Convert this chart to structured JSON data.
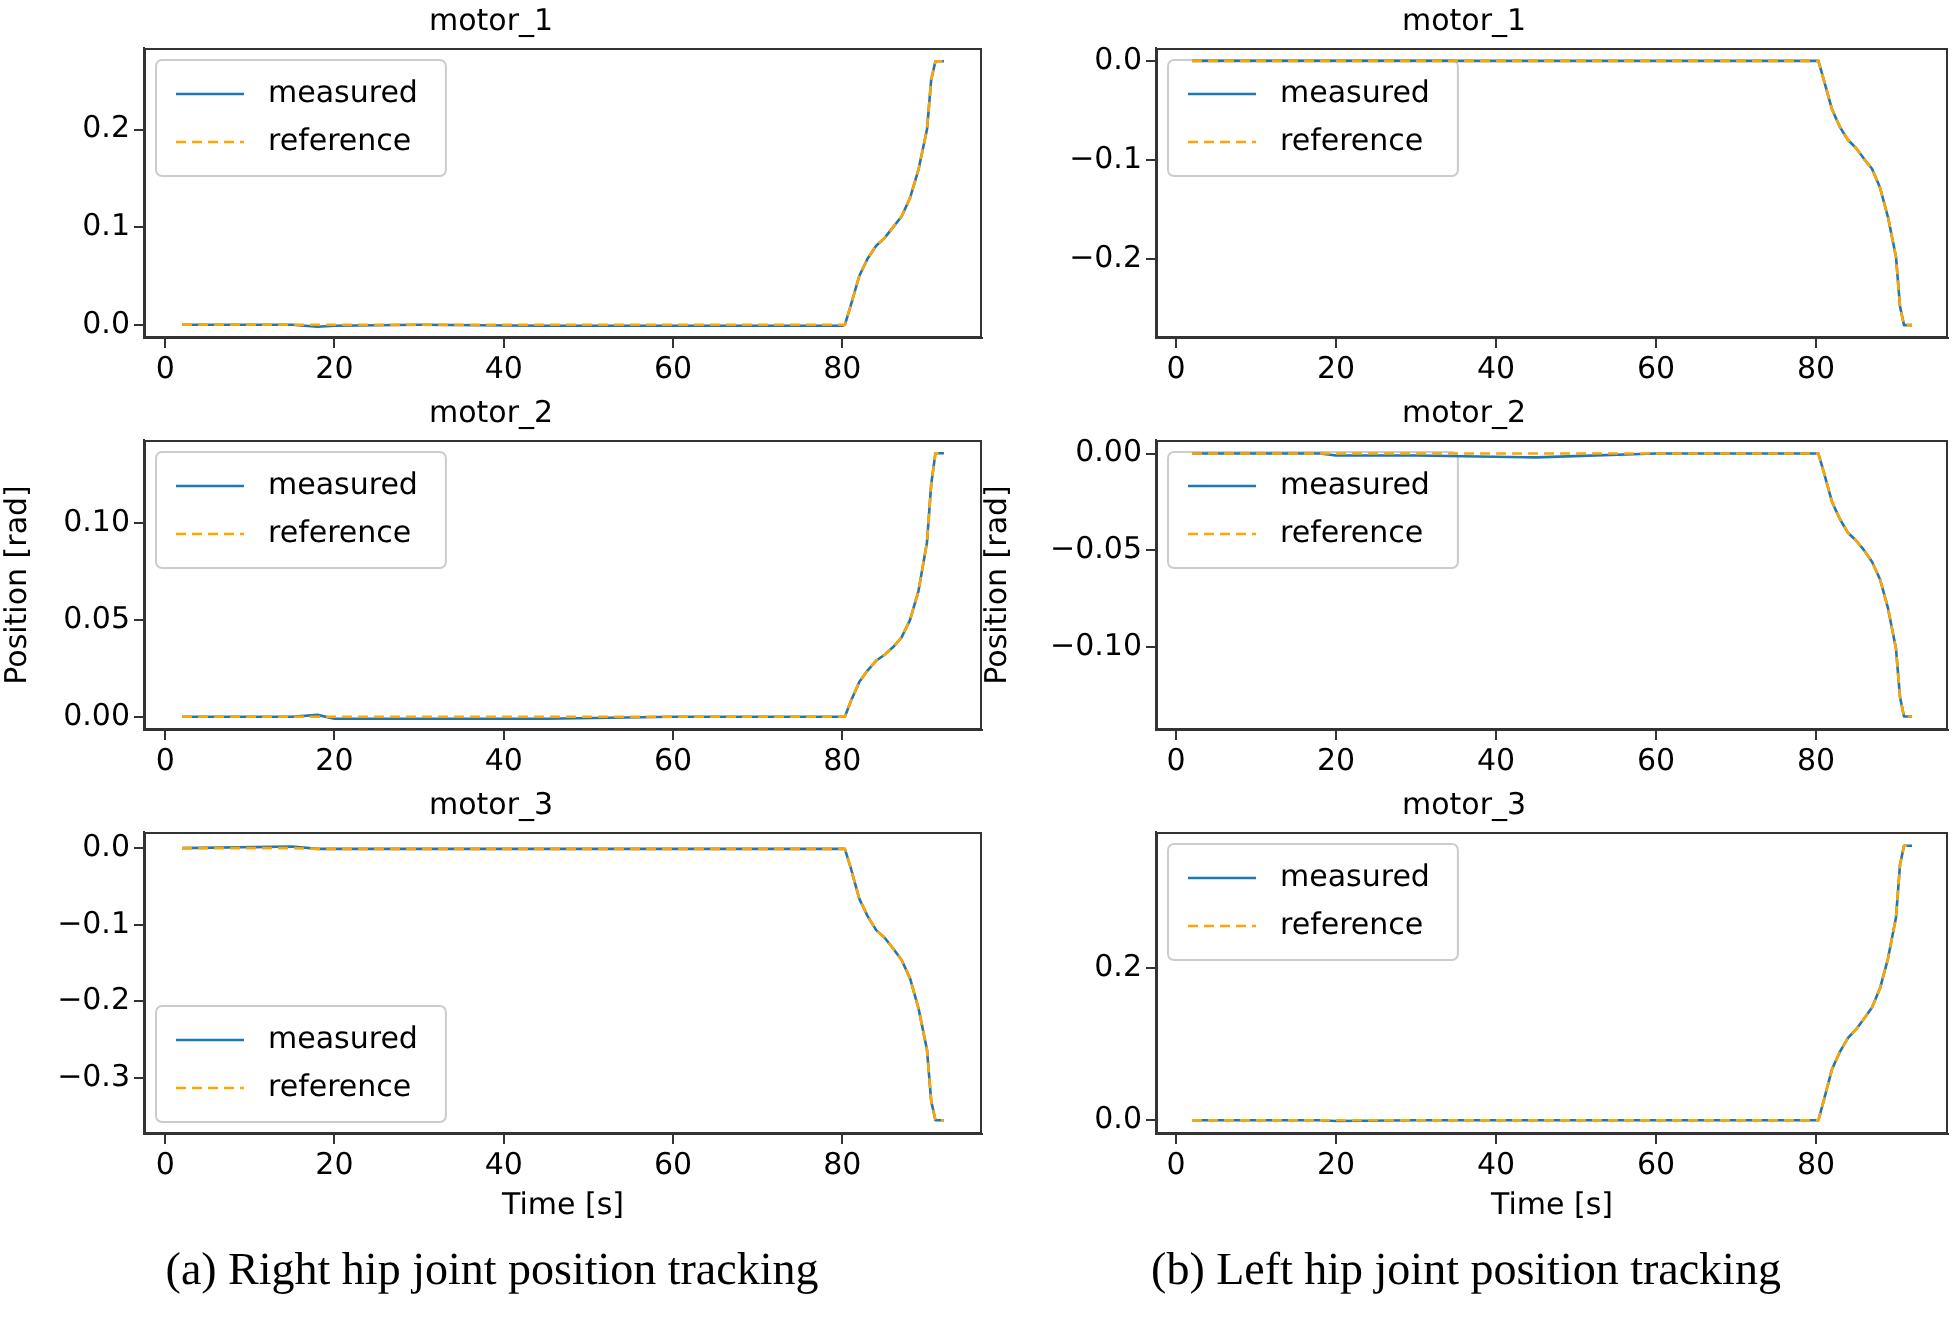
{
  "chart_data": [
    {
      "type": "line",
      "title": "motor_1",
      "x": [
        2,
        15,
        18,
        20,
        30,
        45,
        60,
        80,
        80.3,
        81,
        82,
        83,
        84,
        85,
        86,
        87,
        88,
        89,
        90,
        90.5,
        91,
        92
      ],
      "xlim": [
        -2.5,
        96.5
      ],
      "xticks": [
        0,
        20,
        40,
        60,
        80
      ],
      "ylim": [
        -0.0135,
        0.2835
      ],
      "yticks": [
        {
          "value": 0,
          "label": "0.0"
        },
        0.1,
        0.2
      ],
      "legend": "top left",
      "grid": false,
      "marker": "none",
      "series": [
        {
          "name": "measured",
          "color": "#1f77b4",
          "line_style": "solid",
          "values": [
            0,
            0,
            -0.002,
            -0.001,
            0,
            -0.001,
            -0.001,
            -0.001,
            0,
            0.02,
            0.05,
            0.068,
            0.081,
            0.089,
            0.1,
            0.111,
            0.13,
            0.159,
            0.2,
            0.251,
            0.27,
            0.27
          ]
        },
        {
          "name": "reference",
          "color": "#ffa500",
          "line_style": "dashed",
          "values": [
            0,
            0,
            0,
            0,
            0,
            0,
            0,
            0,
            0,
            0.02,
            0.05,
            0.068,
            0.081,
            0.089,
            0.1,
            0.111,
            0.13,
            0.159,
            0.2,
            0.251,
            0.27,
            0.27
          ]
        }
      ]
    },
    {
      "type": "line",
      "title": "motor_2",
      "ylabel": "Position [rad]",
      "x": [
        2,
        15,
        18,
        20,
        30,
        45,
        60,
        80,
        80.3,
        81,
        82,
        83,
        84,
        85,
        86,
        87,
        88,
        89,
        90,
        90.5,
        91,
        92
      ],
      "xlim": [
        -2.5,
        96.5
      ],
      "xticks": [
        0,
        20,
        40,
        60,
        80
      ],
      "ylim": [
        -0.0068,
        0.1428
      ],
      "yticks": [
        {
          "value": 0,
          "label": "0.00"
        },
        0.05,
        {
          "value": 0.1,
          "label": "0.10"
        }
      ],
      "legend": "top left",
      "grid": false,
      "marker": "none",
      "series": [
        {
          "name": "measured",
          "color": "#1f77b4",
          "line_style": "solid",
          "values": [
            0,
            0,
            0.001,
            -0.001,
            -0.001,
            -0.001,
            0,
            0,
            0,
            0.008,
            0.018,
            0.024,
            0.029,
            0.032,
            0.036,
            0.041,
            0.05,
            0.065,
            0.09,
            0.12,
            0.136,
            0.136
          ]
        },
        {
          "name": "reference",
          "color": "#ffa500",
          "line_style": "dashed",
          "values": [
            0,
            0,
            0,
            0,
            0,
            0,
            0,
            0,
            0,
            0.008,
            0.018,
            0.024,
            0.029,
            0.032,
            0.036,
            0.041,
            0.05,
            0.065,
            0.09,
            0.12,
            0.136,
            0.136
          ]
        }
      ]
    },
    {
      "type": "line",
      "title": "motor_3",
      "xlabel": "Time [s]",
      "annotations": [
        "(a) Right hip joint position tracking"
      ],
      "x": [
        2,
        15,
        18,
        20,
        30,
        45,
        60,
        80,
        80.3,
        81,
        82,
        83,
        84,
        85,
        86,
        87,
        88,
        89,
        90,
        90.5,
        91,
        92
      ],
      "xlim": [
        -2.5,
        96.5
      ],
      "xticks": [
        0,
        20,
        40,
        60,
        80
      ],
      "ylim": [
        -0.373,
        0.021
      ],
      "yticks": [
        {
          "value": -0.3,
          "label": "−0.3"
        },
        {
          "value": -0.2,
          "label": "−0.2"
        },
        {
          "value": -0.1,
          "label": "−0.1"
        },
        {
          "value": 0,
          "label": "0.0"
        }
      ],
      "legend": "bottom left",
      "grid": false,
      "marker": "none",
      "series": [
        {
          "name": "measured",
          "color": "#1f77b4",
          "line_style": "solid",
          "values": [
            0,
            0.002,
            -0.001,
            -0.001,
            -0.001,
            -0.001,
            -0.001,
            -0.001,
            -0.001,
            -0.026,
            -0.066,
            -0.089,
            -0.107,
            -0.117,
            -0.131,
            -0.146,
            -0.17,
            -0.209,
            -0.263,
            -0.33,
            -0.355,
            -0.355
          ]
        },
        {
          "name": "reference",
          "color": "#ffa500",
          "line_style": "dashed",
          "values": [
            0,
            0,
            -0.001,
            -0.001,
            -0.001,
            -0.001,
            -0.001,
            -0.001,
            -0.001,
            -0.026,
            -0.066,
            -0.089,
            -0.107,
            -0.117,
            -0.131,
            -0.146,
            -0.17,
            -0.209,
            -0.263,
            -0.33,
            -0.355,
            -0.355
          ]
        }
      ]
    },
    {
      "type": "line",
      "title": "motor_1",
      "x": [
        2,
        15,
        18,
        20,
        30,
        45,
        60,
        80,
        80.3,
        81,
        82,
        83,
        84,
        85,
        86,
        87,
        88,
        89,
        90,
        90.5,
        91,
        92
      ],
      "xlim": [
        -2.5,
        96.5
      ],
      "xticks": [
        0,
        20,
        40,
        60,
        80
      ],
      "ylim": [
        -0.28,
        0.013
      ],
      "yticks": [
        {
          "value": -0.2,
          "label": "−0.2"
        },
        {
          "value": -0.1,
          "label": "−0.1"
        },
        {
          "value": 0,
          "label": "0.0"
        }
      ],
      "legend": "top left",
      "grid": false,
      "marker": "none",
      "series": [
        {
          "name": "measured",
          "color": "#1f77b4",
          "line_style": "solid",
          "values": [
            0,
            0,
            0,
            0,
            0,
            0,
            0,
            0,
            0,
            -0.02,
            -0.049,
            -0.067,
            -0.08,
            -0.088,
            -0.099,
            -0.109,
            -0.128,
            -0.158,
            -0.198,
            -0.248,
            -0.267,
            -0.267
          ]
        },
        {
          "name": "reference",
          "color": "#ffa500",
          "line_style": "dashed",
          "values": [
            0,
            0,
            0,
            0,
            0,
            0,
            0,
            0,
            0,
            -0.02,
            -0.049,
            -0.067,
            -0.08,
            -0.088,
            -0.099,
            -0.109,
            -0.128,
            -0.158,
            -0.198,
            -0.248,
            -0.267,
            -0.267
          ]
        }
      ]
    },
    {
      "type": "line",
      "title": "motor_2",
      "ylabel": "Position [rad]",
      "x": [
        2,
        15,
        18,
        20,
        30,
        45,
        60,
        80,
        80.3,
        81,
        82,
        83,
        84,
        85,
        86,
        87,
        88,
        89,
        90,
        90.5,
        91,
        92
      ],
      "xlim": [
        -2.5,
        96.5
      ],
      "xticks": [
        0,
        20,
        40,
        60,
        80
      ],
      "ylim": [
        -0.143,
        0.007
      ],
      "yticks": [
        {
          "value": -0.1,
          "label": "−0.10"
        },
        {
          "value": -0.05,
          "label": "−0.05"
        },
        {
          "value": 0,
          "label": "0.00"
        }
      ],
      "legend": "top left",
      "grid": false,
      "marker": "none",
      "series": [
        {
          "name": "measured",
          "color": "#1f77b4",
          "line_style": "solid",
          "values": [
            0,
            0,
            0,
            -0.001,
            -0.001,
            -0.002,
            0,
            0,
            0,
            -0.01,
            -0.025,
            -0.034,
            -0.041,
            -0.045,
            -0.05,
            -0.056,
            -0.065,
            -0.08,
            -0.101,
            -0.126,
            -0.136,
            -0.136
          ]
        },
        {
          "name": "reference",
          "color": "#ffa500",
          "line_style": "dashed",
          "values": [
            0,
            0,
            0,
            0,
            0,
            0,
            0,
            0,
            0,
            -0.01,
            -0.025,
            -0.034,
            -0.041,
            -0.045,
            -0.05,
            -0.056,
            -0.065,
            -0.08,
            -0.101,
            -0.126,
            -0.136,
            -0.136
          ]
        }
      ]
    },
    {
      "type": "line",
      "title": "motor_3",
      "xlabel": "Time [s]",
      "annotations": [
        "(b) Left hip joint position tracking"
      ],
      "x": [
        2,
        15,
        18,
        20,
        30,
        45,
        60,
        80,
        80.3,
        81,
        82,
        83,
        84,
        85,
        86,
        87,
        88,
        89,
        90,
        90.5,
        91,
        92
      ],
      "xlim": [
        -2.5,
        96.5
      ],
      "xticks": [
        0,
        20,
        40,
        60,
        80
      ],
      "ylim": [
        -0.018,
        0.378
      ],
      "yticks": [
        {
          "value": 0,
          "label": "0.0"
        },
        0.2
      ],
      "legend": "top left",
      "grid": false,
      "marker": "none",
      "series": [
        {
          "name": "measured",
          "color": "#1f77b4",
          "line_style": "solid",
          "values": [
            0,
            0,
            0,
            -0.001,
            0,
            0,
            0,
            0,
            0,
            0.027,
            0.067,
            0.09,
            0.108,
            0.119,
            0.133,
            0.148,
            0.173,
            0.212,
            0.266,
            0.335,
            0.36,
            0.36
          ]
        },
        {
          "name": "reference",
          "color": "#ffa500",
          "line_style": "dashed",
          "values": [
            0,
            0,
            0,
            0,
            0,
            0,
            0,
            0,
            0,
            0.027,
            0.067,
            0.09,
            0.108,
            0.119,
            0.133,
            0.148,
            0.173,
            0.212,
            0.266,
            0.335,
            0.36,
            0.36
          ]
        }
      ]
    }
  ]
}
